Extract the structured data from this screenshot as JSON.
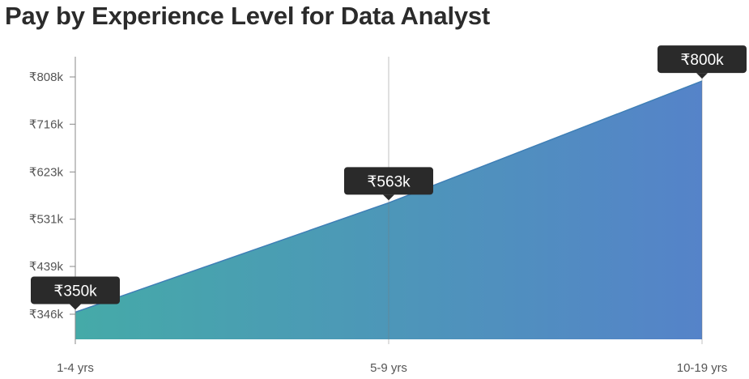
{
  "title": "Pay by Experience Level for Data Analyst",
  "chart_data": {
    "type": "area",
    "title": "Pay by Experience Level for Data Analyst",
    "categories": [
      "1-4 yrs",
      "5-9 yrs",
      "10-19 yrs"
    ],
    "values": [
      350,
      563,
      800
    ],
    "value_labels": [
      "₹350k",
      "₹563k",
      "₹800k"
    ],
    "y_ticks": [
      346,
      439,
      531,
      623,
      716,
      808
    ],
    "y_tick_labels": [
      "₹346k",
      "₹439k",
      "₹531k",
      "₹623k",
      "₹716k",
      "₹808k"
    ],
    "ylim": [
      325,
      848
    ],
    "xlabel": "",
    "ylabel": "",
    "grid": false,
    "colors": {
      "start": "#45aaa8",
      "end": "#5583c9",
      "tooltip": "#2a2a2a",
      "axis": "#999999"
    }
  }
}
